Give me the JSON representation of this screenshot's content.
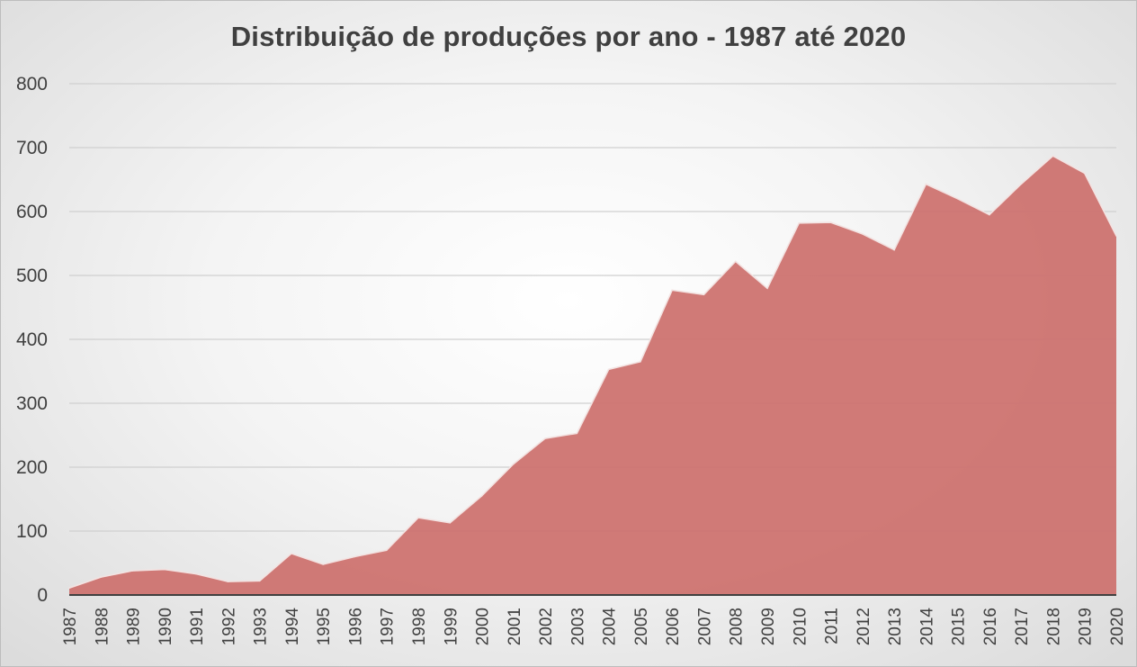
{
  "chart_data": {
    "type": "area",
    "title": "Distribuição de produções por ano - 1987 até 2020",
    "xlabel": "",
    "ylabel": "",
    "ylim": [
      0,
      800
    ],
    "yticks": [
      0,
      100,
      200,
      300,
      400,
      500,
      600,
      700,
      800
    ],
    "grid": true,
    "legend": "none",
    "colors": {
      "fill": "#cd7370",
      "edge": "#f3e3e2",
      "grid": "#d0d0d0",
      "axis": "#404040"
    },
    "categories": [
      "1987",
      "1988",
      "1989",
      "1990",
      "1991",
      "1992",
      "1993",
      "1994",
      "1995",
      "1996",
      "1997",
      "1998",
      "1999",
      "2000",
      "2001",
      "2002",
      "2003",
      "2004",
      "2005",
      "2006",
      "2007",
      "2008",
      "2009",
      "2010",
      "2011",
      "2012",
      "2013",
      "2014",
      "2015",
      "2016",
      "2017",
      "2018",
      "2019",
      "2020"
    ],
    "values": [
      11,
      28,
      38,
      40,
      33,
      21,
      22,
      65,
      48,
      60,
      70,
      121,
      113,
      155,
      205,
      245,
      253,
      353,
      365,
      477,
      470,
      522,
      480,
      582,
      583,
      565,
      540,
      643,
      620,
      595,
      643,
      687,
      660,
      562
    ]
  }
}
